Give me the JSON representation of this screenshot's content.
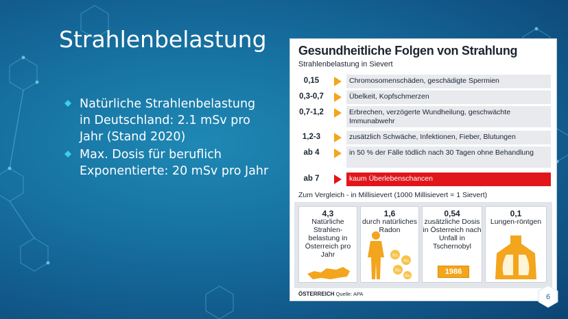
{
  "slide": {
    "title": "Strahlenbelastung",
    "bullets": [
      "Natürliche Strahlenbelastung in Deutschland: 2.1 mSv pro Jahr (Stand 2020)",
      "Max. Dosis für beruflich Exponentierte: 20 mSv pro Jahr"
    ],
    "page_number": "6"
  },
  "infographic": {
    "title": "Gesundheitliche Folgen von Strahlung",
    "subtitle": "Strahlenbelastung in Sievert",
    "rows": [
      {
        "value": "0,15",
        "text": "Chromosomenschäden, geschädigte Spermien"
      },
      {
        "value": "0,3-0,7",
        "text": "Übelkeit, Kopfschmerzen"
      },
      {
        "value": "0,7-1,2",
        "text": "Erbrechen, verzögerte Wundheilung, geschwächte Immunabwehr"
      },
      {
        "value": "1,2-3",
        "text": "zusätzlich Schwäche, Infektionen, Fieber, Blutungen"
      },
      {
        "value": "ab 4",
        "text": "in 50 % der Fälle tödlich nach 30 Tagen ohne Behandlung"
      },
      {
        "value": "ab 7",
        "text": "kaum Überlebenschancen"
      }
    ],
    "comparison_title": "Zum Vergleich - in Millisievert (1000 Millisievert = 1 Sievert)",
    "comparisons": [
      {
        "value": "4,3",
        "text": "Natürliche Strahlen-belastung in Österreich pro Jahr"
      },
      {
        "value": "1,6",
        "text": "durch natürliches Radon"
      },
      {
        "value": "0,54",
        "text": "zusätzliche Dosis in Österreich nach Unfall in Tschernobyl"
      },
      {
        "value": "0,1",
        "text": "Lungen-röntgen"
      }
    ],
    "year_label": "1986",
    "radon_label": "Rn",
    "footer_brand": "ÖSTERREICH",
    "footer_source": "Quelle: APA",
    "colors": {
      "accent": "#f3a51d",
      "danger": "#e0161b",
      "row_bg": "#e8eaee"
    }
  }
}
